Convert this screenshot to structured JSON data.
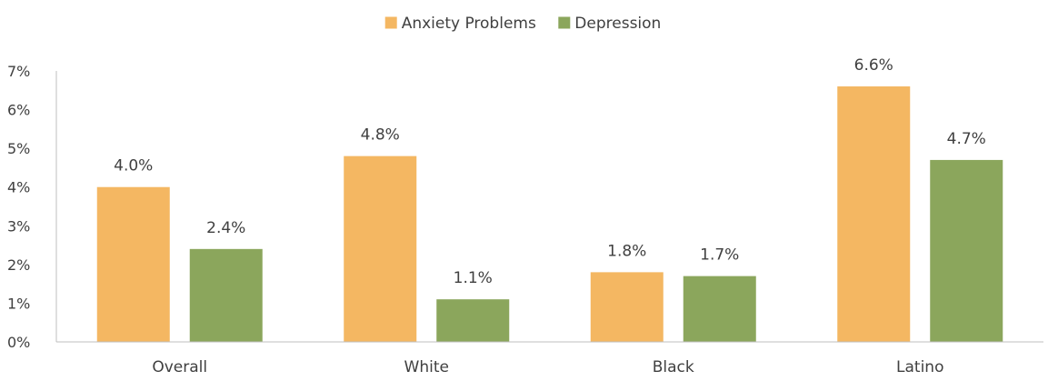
{
  "chart_data": {
    "type": "bar",
    "title": "",
    "xlabel": "",
    "ylabel": "",
    "categories": [
      "Overall",
      "White",
      "Black",
      "Latino"
    ],
    "series": [
      {
        "name": "Anxiety Problems",
        "color": "#F4B762",
        "values": [
          4.0,
          4.8,
          1.8,
          6.6
        ],
        "labels": [
          "4.0%",
          "4.8%",
          "1.8%",
          "6.6%"
        ]
      },
      {
        "name": "Depression",
        "color": "#8BA65C",
        "values": [
          2.4,
          1.1,
          1.7,
          4.7
        ],
        "labels": [
          "2.4%",
          "1.1%",
          "1.7%",
          "4.7%"
        ]
      }
    ],
    "ylim": [
      0,
      7
    ],
    "yticks": [
      0,
      1,
      2,
      3,
      4,
      5,
      6,
      7
    ],
    "ytick_labels": [
      "0%",
      "1%",
      "2%",
      "3%",
      "4%",
      "5%",
      "6%",
      "7%"
    ],
    "legend_position": "top-center",
    "grid": false,
    "axis_color": "#BFBFBF"
  }
}
